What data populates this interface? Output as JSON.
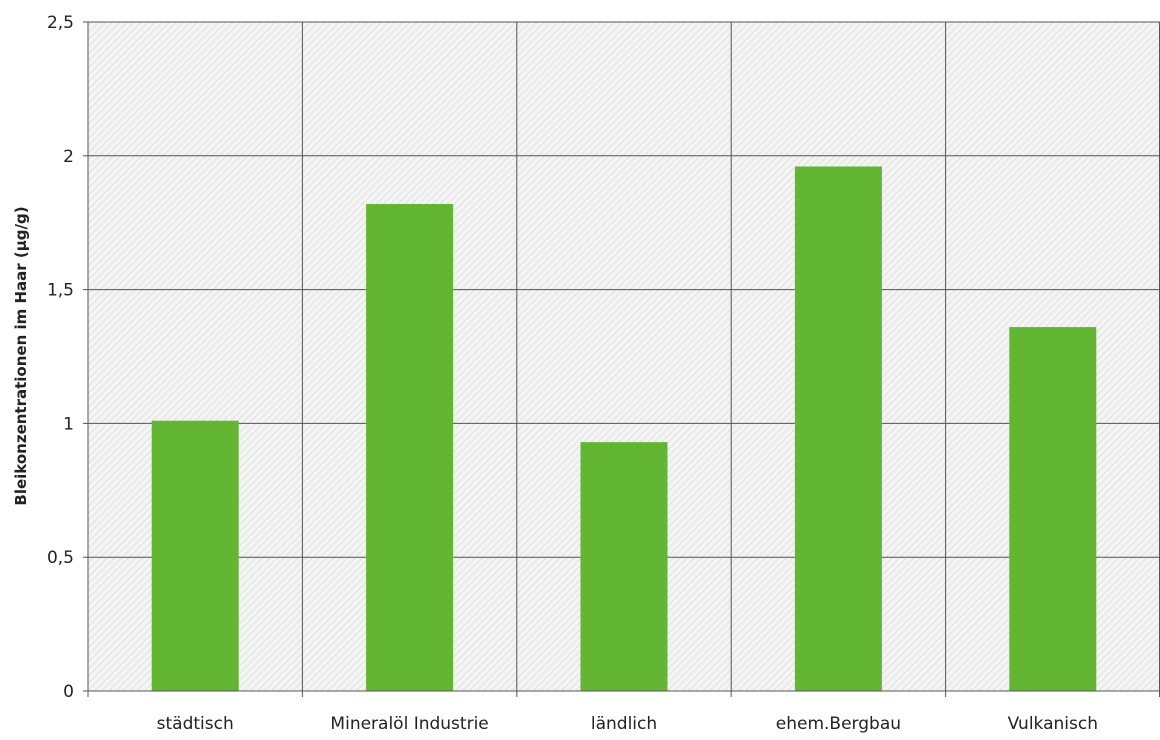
{
  "chart_data": {
    "type": "bar",
    "title": "",
    "xlabel": "",
    "ylabel": "Bleikonzentrationen im Haar (µg/g)",
    "categories": [
      "städtisch",
      "Mineralöl Industrie",
      "ländlich",
      "ehem.Bergbau",
      "Vulkanisch"
    ],
    "values": [
      1.01,
      1.82,
      0.93,
      1.96,
      1.36
    ],
    "ylim": [
      0,
      2.5
    ],
    "yticks": [
      0,
      0.5,
      1,
      1.5,
      2,
      2.5
    ],
    "ytick_labels": [
      "0",
      "0,5",
      "1",
      "1,5",
      "2",
      "2,5"
    ],
    "grid": true,
    "legend": "none",
    "bar_color": "#63b632",
    "plot_background": "hatched light gray",
    "gridline_color": "#555555"
  }
}
